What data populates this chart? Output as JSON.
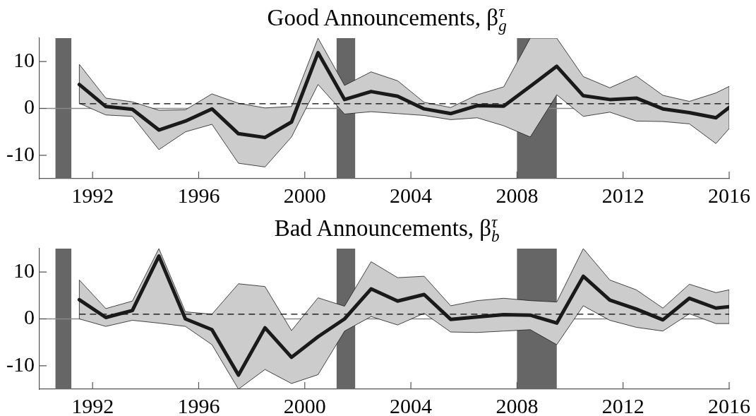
{
  "chart_data": [
    {
      "type": "line",
      "title": "Good Announcements, β$_{g}$$^{τ}$",
      "x": [
        1991.5,
        1992.5,
        1993.5,
        1994.5,
        1995.5,
        1996.5,
        1997.5,
        1998.5,
        1999.5,
        2000.5,
        2001.5,
        2002.5,
        2003.5,
        2004.5,
        2005.5,
        2006.5,
        2007.5,
        2008.5,
        2009.5,
        2010.5,
        2011.5,
        2012.5,
        2013.5,
        2014.5,
        2015.5,
        2016
      ],
      "xlim": [
        1990,
        2016
      ],
      "xticks": [
        1992,
        1996,
        2000,
        2004,
        2008,
        2012,
        2016
      ],
      "ylim": [
        -15,
        15
      ],
      "yticks": [
        -10,
        0,
        10
      ],
      "grid": false,
      "marker": "none",
      "series": [
        {
          "color": "#1a1a1a",
          "values": [
            5.1,
            0.4,
            -0.2,
            -4.6,
            -2.7,
            -0.1,
            -5.4,
            -6.2,
            -2.9,
            11.9,
            1.9,
            3.6,
            2.6,
            -0.1,
            -1.1,
            0.6,
            0.5,
            4.7,
            9.0,
            2.7,
            1.9,
            2.2,
            -0.1,
            -0.9,
            -2.0,
            0.2
          ],
          "lower": [
            1.1,
            -1.4,
            -1.7,
            -8.8,
            -5.0,
            -3.4,
            -11.7,
            -12.5,
            -6.1,
            5.1,
            -1.2,
            -0.7,
            -1.1,
            -1.5,
            -2.4,
            -2.0,
            -3.7,
            -6.1,
            2.9,
            -1.7,
            -0.8,
            -2.7,
            -2.8,
            -3.3,
            -7.5,
            -4.3
          ],
          "upper": [
            9.4,
            2.2,
            1.4,
            -0.4,
            -0.3,
            3.1,
            1.1,
            0.1,
            0.4,
            15,
            4.9,
            7.8,
            5.9,
            1.3,
            0.2,
            2.9,
            4.6,
            15,
            15,
            6.8,
            4.4,
            6.9,
            2.8,
            1.5,
            3.3,
            4.7
          ]
        },
        {
          "type": "line",
          "values": [
            1,
            1,
            1,
            1,
            1,
            1,
            1,
            1,
            1,
            1,
            1,
            1,
            1,
            1,
            1,
            1,
            1,
            1,
            1,
            1,
            1,
            1,
            1,
            1,
            1,
            1
          ],
          "color": "#000000",
          "line_style": "dashed"
        }
      ],
      "ref_lines": [
        {
          "axis": "y",
          "value": 0,
          "color": "#888888"
        }
      ],
      "bands": [
        {
          "axis": "x",
          "from": 1990.6,
          "to": 1991.2,
          "color": "#666666"
        },
        {
          "axis": "x",
          "from": 2001.2,
          "to": 2001.9,
          "color": "#666666"
        },
        {
          "axis": "x",
          "from": 2008.0,
          "to": 2009.5,
          "color": "#666666"
        }
      ]
    },
    {
      "type": "line",
      "title": "Bad Announcements, β$_{b}$$^{τ}$",
      "x": [
        1991.5,
        1992.5,
        1993.5,
        1994.5,
        1995.5,
        1996.5,
        1997.5,
        1998.5,
        1999.5,
        2000.5,
        2001.5,
        2002.5,
        2003.5,
        2004.5,
        2005.5,
        2006.5,
        2007.5,
        2008.5,
        2009.5,
        2010.5,
        2011.5,
        2012.5,
        2013.5,
        2014.5,
        2015.5,
        2016
      ],
      "xlim": [
        1990,
        2016
      ],
      "xticks": [
        1992,
        1996,
        2000,
        2004,
        2008,
        2012,
        2016
      ],
      "ylim": [
        -15,
        15
      ],
      "yticks": [
        -10,
        0,
        10
      ],
      "grid": false,
      "marker": "none",
      "series": [
        {
          "color": "#1a1a1a",
          "values": [
            4.1,
            0.3,
            1.8,
            13.4,
            0.0,
            -2.3,
            -12.0,
            -1.9,
            -8.2,
            -3.8,
            0.0,
            6.4,
            3.8,
            5.2,
            -0.1,
            0.4,
            0.9,
            0.8,
            -0.9,
            9.1,
            4.0,
            2.1,
            -0.2,
            4.4,
            2.3,
            2.6
          ],
          "lower": [
            0.0,
            -1.6,
            -0.3,
            -0.9,
            -1.6,
            -5.5,
            -15,
            -10.8,
            -13.8,
            -11.9,
            -2.6,
            0.5,
            -1.3,
            1.2,
            -2.8,
            -2.9,
            -2.6,
            -2.3,
            -5.5,
            2.8,
            -0.3,
            -1.8,
            -2.6,
            1.1,
            -1.0,
            -1.0
          ],
          "upper": [
            8.3,
            2.2,
            3.8,
            15,
            1.5,
            1.0,
            7.5,
            6.9,
            -2.5,
            4.5,
            2.7,
            12.2,
            8.8,
            9.1,
            2.8,
            3.9,
            4.4,
            3.9,
            3.6,
            15,
            8.3,
            6.2,
            2.3,
            7.4,
            5.6,
            6.2
          ]
        },
        {
          "type": "line",
          "values": [
            1,
            1,
            1,
            1,
            1,
            1,
            1,
            1,
            1,
            1,
            1,
            1,
            1,
            1,
            1,
            1,
            1,
            1,
            1,
            1,
            1,
            1,
            1,
            1,
            1,
            1
          ],
          "color": "#000000",
          "line_style": "dashed"
        }
      ],
      "ref_lines": [
        {
          "axis": "y",
          "value": 0,
          "color": "#888888"
        }
      ],
      "bands": [
        {
          "axis": "x",
          "from": 1990.6,
          "to": 1991.2,
          "color": "#666666"
        },
        {
          "axis": "x",
          "from": 2001.2,
          "to": 2001.9,
          "color": "#666666"
        },
        {
          "axis": "x",
          "from": 2008.0,
          "to": 2009.5,
          "color": "#666666"
        }
      ]
    }
  ]
}
